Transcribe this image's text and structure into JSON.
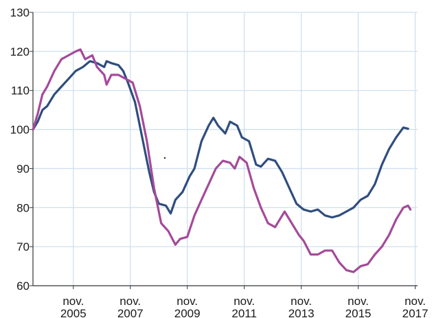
{
  "chart_data": {
    "type": "line",
    "title": "",
    "xlabel": "",
    "ylabel": "",
    "ylim": [
      60,
      130
    ],
    "yticks": [
      60,
      70,
      80,
      90,
      100,
      110,
      120,
      130
    ],
    "xlim": [
      "2004-06",
      "2017-12"
    ],
    "xticks": [
      {
        "month": "2005-11",
        "line1": "nov.",
        "line2": "2005"
      },
      {
        "month": "2007-11",
        "line1": "nov.",
        "line2": "2007"
      },
      {
        "month": "2009-11",
        "line1": "nov.",
        "line2": "2009"
      },
      {
        "month": "2011-11",
        "line1": "nov.",
        "line2": "2011"
      },
      {
        "month": "2013-11",
        "line1": "nov.",
        "line2": "2013"
      },
      {
        "month": "2015-11",
        "line1": "nov.",
        "line2": "2015"
      },
      {
        "month": "2017-11",
        "line1": "nov.",
        "line2": "2017"
      }
    ],
    "grid": true,
    "series": [
      {
        "color": "#2f4d7e",
        "points": [
          [
            "2004-06",
            100
          ],
          [
            "2004-08",
            102
          ],
          [
            "2004-10",
            105
          ],
          [
            "2004-12",
            106
          ],
          [
            "2005-03",
            109
          ],
          [
            "2005-06",
            111
          ],
          [
            "2005-09",
            113
          ],
          [
            "2005-12",
            115
          ],
          [
            "2006-03",
            116
          ],
          [
            "2006-06",
            117.5
          ],
          [
            "2006-09",
            117
          ],
          [
            "2006-12",
            116
          ],
          [
            "2007-01",
            117.5
          ],
          [
            "2007-03",
            117
          ],
          [
            "2007-06",
            116.5
          ],
          [
            "2007-08",
            115
          ],
          [
            "2007-10",
            112
          ],
          [
            "2008-01",
            107
          ],
          [
            "2008-04",
            98
          ],
          [
            "2008-07",
            89
          ],
          [
            "2008-09",
            84
          ],
          [
            "2008-11",
            81
          ],
          [
            "2009-02",
            80.5
          ],
          [
            "2009-04",
            78.5
          ],
          [
            "2009-06",
            82
          ],
          [
            "2009-09",
            84
          ],
          [
            "2009-12",
            88
          ],
          [
            "2010-02",
            90
          ],
          [
            "2010-05",
            97
          ],
          [
            "2010-08",
            101
          ],
          [
            "2010-10",
            103
          ],
          [
            "2010-12",
            101
          ],
          [
            "2011-03",
            99
          ],
          [
            "2011-05",
            102
          ],
          [
            "2011-08",
            101
          ],
          [
            "2011-10",
            98
          ],
          [
            "2012-01",
            97
          ],
          [
            "2012-04",
            91
          ],
          [
            "2012-06",
            90.5
          ],
          [
            "2012-09",
            92.5
          ],
          [
            "2012-12",
            92
          ],
          [
            "2013-03",
            89
          ],
          [
            "2013-06",
            85
          ],
          [
            "2013-09",
            81
          ],
          [
            "2013-12",
            79.5
          ],
          [
            "2014-03",
            79
          ],
          [
            "2014-06",
            79.5
          ],
          [
            "2014-09",
            78
          ],
          [
            "2014-12",
            77.5
          ],
          [
            "2015-03",
            78
          ],
          [
            "2015-06",
            79
          ],
          [
            "2015-09",
            80
          ],
          [
            "2015-12",
            82
          ],
          [
            "2016-03",
            83
          ],
          [
            "2016-06",
            86
          ],
          [
            "2016-09",
            91
          ],
          [
            "2016-12",
            95
          ],
          [
            "2017-03",
            98
          ],
          [
            "2017-06",
            100.5
          ],
          [
            "2017-08",
            100.2
          ]
        ]
      },
      {
        "color": "#a44a9a",
        "points": [
          [
            "2004-06",
            100
          ],
          [
            "2004-08",
            104
          ],
          [
            "2004-10",
            109
          ],
          [
            "2004-12",
            111
          ],
          [
            "2005-03",
            115
          ],
          [
            "2005-06",
            118
          ],
          [
            "2005-09",
            119
          ],
          [
            "2005-12",
            120
          ],
          [
            "2006-02",
            120.5
          ],
          [
            "2006-04",
            118
          ],
          [
            "2006-07",
            119
          ],
          [
            "2006-09",
            116
          ],
          [
            "2006-12",
            114
          ],
          [
            "2007-01",
            111.5
          ],
          [
            "2007-03",
            114
          ],
          [
            "2007-06",
            114
          ],
          [
            "2007-09",
            113
          ],
          [
            "2007-12",
            112
          ],
          [
            "2008-03",
            106
          ],
          [
            "2008-06",
            97
          ],
          [
            "2008-09",
            85
          ],
          [
            "2008-12",
            76
          ],
          [
            "2009-03",
            74
          ],
          [
            "2009-06",
            70.5
          ],
          [
            "2009-08",
            72
          ],
          [
            "2009-11",
            72.5
          ],
          [
            "2010-02",
            78
          ],
          [
            "2010-05",
            82
          ],
          [
            "2010-08",
            86
          ],
          [
            "2010-11",
            90
          ],
          [
            "2011-02",
            92
          ],
          [
            "2011-05",
            91.5
          ],
          [
            "2011-07",
            90
          ],
          [
            "2011-09",
            93
          ],
          [
            "2011-12",
            91.5
          ],
          [
            "2012-03",
            85
          ],
          [
            "2012-06",
            80
          ],
          [
            "2012-09",
            76
          ],
          [
            "2012-12",
            75
          ],
          [
            "2013-02",
            77
          ],
          [
            "2013-04",
            79
          ],
          [
            "2013-07",
            76
          ],
          [
            "2013-10",
            73
          ],
          [
            "2013-12",
            71.5
          ],
          [
            "2014-03",
            68
          ],
          [
            "2014-06",
            68
          ],
          [
            "2014-09",
            69
          ],
          [
            "2014-12",
            69
          ],
          [
            "2015-03",
            66
          ],
          [
            "2015-06",
            64
          ],
          [
            "2015-09",
            63.5
          ],
          [
            "2015-12",
            65
          ],
          [
            "2016-03",
            65.5
          ],
          [
            "2016-06",
            68
          ],
          [
            "2016-09",
            70
          ],
          [
            "2016-12",
            73
          ],
          [
            "2017-03",
            77
          ],
          [
            "2017-06",
            80
          ],
          [
            "2017-08",
            80.5
          ],
          [
            "2017-09",
            79.5
          ]
        ]
      }
    ]
  }
}
